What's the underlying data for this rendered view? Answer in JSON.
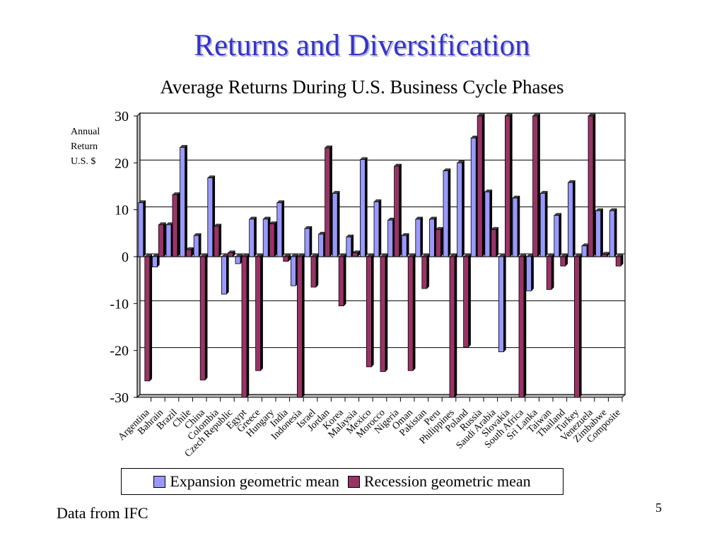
{
  "slide": {
    "title": "Returns and Diversification",
    "footnote": "Data from IFC",
    "page_number": "5"
  },
  "chart_data": {
    "type": "bar",
    "title": "Average Returns During U.S. Business Cycle Phases",
    "ylabel_lines": [
      "Annual",
      "Return",
      "U.S. $"
    ],
    "ylim": [
      -30,
      30
    ],
    "yticks": [
      30,
      20,
      10,
      0,
      -10,
      -20,
      -30
    ],
    "grid": true,
    "legend_position": "bottom",
    "categories": [
      "Argentina",
      "Bahrain",
      "Brazil",
      "Chile",
      "China",
      "Colombia",
      "Czech Republic",
      "Egypt",
      "Greece",
      "Hungary",
      "India",
      "Indonesia",
      "Israel",
      "Jordan",
      "Korea",
      "Malaysia",
      "Mexico",
      "Morocco",
      "Nigeria",
      "Oman",
      "Pakistan",
      "Peru",
      "Philippines",
      "Poland",
      "Russia",
      "Saudi Arabia",
      "Slovakia",
      "South Africa",
      "Sri Lanka",
      "Taiwan",
      "Thailand",
      "Turkey",
      "Venezuela",
      "Zimbabwe",
      "Composite"
    ],
    "series": [
      {
        "name": "Expansion geometric mean",
        "color": "#9999ff",
        "values": [
          11.5,
          -2.2,
          6.8,
          23.3,
          4.5,
          16.8,
          -8.0,
          -1.5,
          8.0,
          8.0,
          11.5,
          -6.2,
          6.0,
          4.8,
          13.5,
          4.2,
          20.7,
          11.7,
          7.8,
          4.5,
          8.0,
          8.0,
          18.3,
          20.0,
          25.3,
          13.8,
          -20.3,
          12.5,
          -7.3,
          13.5,
          8.8,
          15.8,
          2.3,
          9.8,
          9.8
        ]
      },
      {
        "name": "Recession geometric mean",
        "color": "#993366",
        "values": [
          -26.5,
          6.8,
          13.2,
          1.5,
          -26.3,
          6.5,
          0.8,
          -30.0,
          -24.3,
          7.0,
          -1.0,
          -30.0,
          -6.5,
          23.2,
          -10.5,
          0.8,
          -23.5,
          -24.5,
          19.3,
          -24.3,
          -6.8,
          5.8,
          -30.0,
          -19.3,
          30.0,
          5.8,
          30.0,
          -30.0,
          30.0,
          -7.0,
          -2.0,
          -30.0,
          30.0,
          0.5,
          -2.0
        ]
      }
    ]
  }
}
